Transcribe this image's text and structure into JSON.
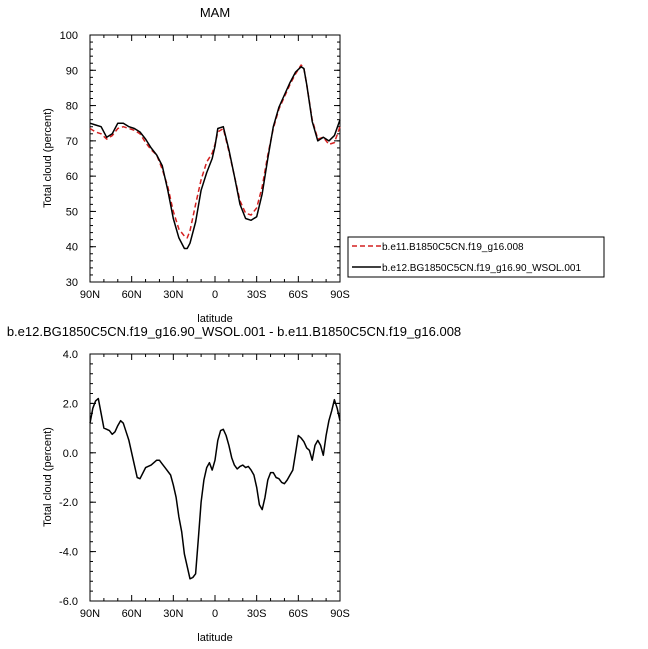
{
  "chart_data": [
    {
      "type": "line",
      "title": "MAM",
      "xlabel": "latitude",
      "ylabel": "Total cloud (percent)",
      "xlim": [
        90,
        -90
      ],
      "ylim": [
        30,
        100
      ],
      "xticks": [
        90,
        60,
        30,
        0,
        -30,
        -60,
        -90
      ],
      "xtick_labels": [
        "90N",
        "60N",
        "30N",
        "0",
        "30S",
        "60S",
        "90S"
      ],
      "yticks": [
        30,
        40,
        50,
        60,
        70,
        80,
        90,
        100
      ],
      "ytick_labels": [
        "30",
        "40",
        "50",
        "60",
        "70",
        "80",
        "90",
        "100"
      ],
      "legend": {
        "position": "right-outside"
      },
      "series": [
        {
          "name": "b.e11.B1850C5CN.f19_g16.008",
          "color": "#d42020",
          "dash": "dashed",
          "x": [
            90,
            86,
            82,
            78,
            74,
            70,
            66,
            62,
            58,
            54,
            50,
            46,
            42,
            38,
            34,
            30,
            26,
            22,
            20,
            18,
            14,
            10,
            6,
            2,
            0,
            -2,
            -6,
            -10,
            -14,
            -18,
            -22,
            -26,
            -30,
            -34,
            -38,
            -42,
            -46,
            -50,
            -54,
            -58,
            -62,
            -64,
            -66,
            -70,
            -74,
            -78,
            -82,
            -86,
            -90
          ],
          "y": [
            73.5,
            72.5,
            72.0,
            70.5,
            71.5,
            73.5,
            74.0,
            73.5,
            73.0,
            72.0,
            69.5,
            67.5,
            66.0,
            62.0,
            57.0,
            50.0,
            45.0,
            43.0,
            42.5,
            44.5,
            52.0,
            59.0,
            64.0,
            66.5,
            69.0,
            72.5,
            73.5,
            67.0,
            60.0,
            53.0,
            49.5,
            49.0,
            51.0,
            57.0,
            66.0,
            73.5,
            79.0,
            82.5,
            86.0,
            89.0,
            91.5,
            90.5,
            86.0,
            76.0,
            70.5,
            71.0,
            69.0,
            69.5,
            74.0
          ]
        },
        {
          "name": "b.e12.BG1850C5CN.f19_g16.90_WSOL.001",
          "color": "#000000",
          "dash": "solid",
          "x": [
            90,
            86,
            82,
            78,
            74,
            70,
            66,
            62,
            58,
            54,
            50,
            46,
            42,
            38,
            34,
            30,
            26,
            22,
            20,
            18,
            14,
            10,
            6,
            2,
            0,
            -2,
            -6,
            -10,
            -14,
            -18,
            -22,
            -26,
            -30,
            -34,
            -38,
            -42,
            -46,
            -50,
            -54,
            -58,
            -62,
            -64,
            -66,
            -70,
            -74,
            -78,
            -82,
            -86,
            -90
          ],
          "y": [
            75.0,
            74.5,
            74.0,
            71.0,
            72.0,
            75.0,
            75.0,
            74.0,
            73.5,
            72.5,
            70.5,
            68.0,
            66.0,
            63.0,
            56.0,
            48.0,
            42.5,
            39.5,
            39.5,
            41.0,
            47.0,
            56.0,
            61.0,
            65.0,
            68.5,
            73.5,
            74.0,
            67.5,
            60.0,
            52.0,
            48.0,
            47.5,
            48.5,
            55.0,
            65.0,
            74.0,
            79.5,
            83.0,
            86.5,
            89.5,
            91.0,
            90.5,
            86.0,
            75.5,
            70.0,
            71.0,
            70.0,
            71.5,
            76.0
          ]
        }
      ]
    },
    {
      "type": "line",
      "title": "b.e12.BG1850C5CN.f19_g16.90_WSOL.001 - b.e11.B1850C5CN.f19_g16.008",
      "xlabel": "latitude",
      "ylabel": "Total cloud (percent)",
      "xlim": [
        90,
        -90
      ],
      "ylim": [
        -6,
        4
      ],
      "xticks": [
        90,
        60,
        30,
        0,
        -30,
        -60,
        -90
      ],
      "xtick_labels": [
        "90N",
        "60N",
        "30N",
        "0",
        "30S",
        "60S",
        "90S"
      ],
      "yticks": [
        -6,
        -4,
        -2,
        0,
        2,
        4
      ],
      "ytick_labels": [
        "-6.0",
        "-4.0",
        "-2.0",
        "0.0",
        "2.0",
        "4.0"
      ],
      "series": [
        {
          "name": "",
          "color": "#000000",
          "dash": "solid",
          "x": [
            90,
            88,
            86,
            84,
            82,
            80,
            78,
            76,
            74,
            72,
            70,
            68,
            66,
            62,
            58,
            56,
            54,
            50,
            46,
            42,
            40,
            38,
            36,
            32,
            30,
            28,
            26,
            24,
            22,
            20,
            18,
            16,
            14,
            12,
            10,
            8,
            6,
            4,
            2,
            0,
            -2,
            -4,
            -6,
            -8,
            -10,
            -12,
            -14,
            -16,
            -18,
            -20,
            -22,
            -24,
            -26,
            -28,
            -30,
            -32,
            -34,
            -36,
            -38,
            -40,
            -42,
            -44,
            -46,
            -48,
            -50,
            -52,
            -54,
            -56,
            -58,
            -60,
            -62,
            -64,
            -66,
            -68,
            -70,
            -72,
            -74,
            -76,
            -78,
            -80,
            -82,
            -84,
            -86,
            -88,
            -90
          ],
          "y": [
            1.2,
            1.8,
            2.1,
            2.2,
            1.6,
            1.0,
            0.95,
            0.9,
            0.75,
            0.85,
            1.1,
            1.3,
            1.2,
            0.5,
            -0.5,
            -1.0,
            -1.05,
            -0.6,
            -0.5,
            -0.3,
            -0.3,
            -0.45,
            -0.6,
            -0.9,
            -1.3,
            -1.8,
            -2.6,
            -3.2,
            -4.1,
            -4.6,
            -5.1,
            -5.05,
            -4.9,
            -3.5,
            -2.0,
            -1.1,
            -0.6,
            -0.4,
            -0.7,
            -0.3,
            0.5,
            0.9,
            0.95,
            0.7,
            0.3,
            -0.2,
            -0.5,
            -0.65,
            -0.55,
            -0.5,
            -0.6,
            -0.55,
            -0.7,
            -0.9,
            -1.4,
            -2.1,
            -2.3,
            -1.8,
            -1.1,
            -0.8,
            -0.8,
            -1.0,
            -1.05,
            -1.2,
            -1.25,
            -1.1,
            -0.9,
            -0.7,
            0.0,
            0.7,
            0.6,
            0.45,
            0.2,
            0.1,
            -0.3,
            0.3,
            0.5,
            0.3,
            -0.1,
            0.7,
            1.3,
            1.7,
            2.15,
            1.8,
            1.3
          ]
        }
      ]
    }
  ]
}
